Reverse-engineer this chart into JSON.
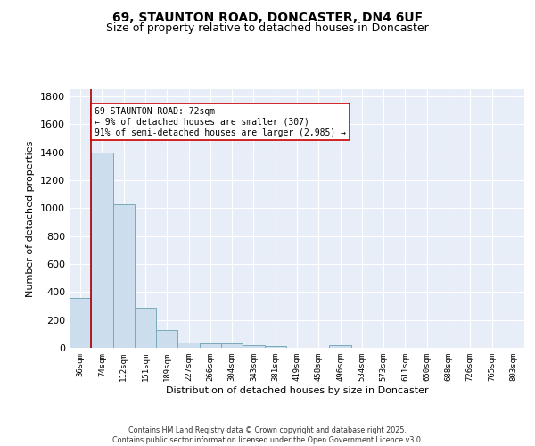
{
  "title_line1": "69, STAUNTON ROAD, DONCASTER, DN4 6UF",
  "title_line2": "Size of property relative to detached houses in Doncaster",
  "xlabel": "Distribution of detached houses by size in Doncaster",
  "ylabel": "Number of detached properties",
  "bin_labels": [
    "36sqm",
    "74sqm",
    "112sqm",
    "151sqm",
    "189sqm",
    "227sqm",
    "266sqm",
    "304sqm",
    "343sqm",
    "381sqm",
    "419sqm",
    "458sqm",
    "496sqm",
    "534sqm",
    "573sqm",
    "611sqm",
    "650sqm",
    "688sqm",
    "726sqm",
    "765sqm",
    "803sqm"
  ],
  "bar_values": [
    360,
    1400,
    1025,
    290,
    130,
    40,
    32,
    35,
    20,
    15,
    0,
    0,
    20,
    0,
    0,
    0,
    0,
    0,
    0,
    0,
    0
  ],
  "bar_color": "#ccdded",
  "bar_edge_color": "#7aaabb",
  "vline_x": 0.5,
  "vline_color": "#aa0000",
  "annotation_text": "69 STAUNTON ROAD: 72sqm\n← 9% of detached houses are smaller (307)\n91% of semi-detached houses are larger (2,985) →",
  "annotation_box_color": "#ffffff",
  "annotation_box_edge": "#cc0000",
  "ylim": [
    0,
    1850
  ],
  "yticks": [
    0,
    200,
    400,
    600,
    800,
    1000,
    1200,
    1400,
    1600,
    1800
  ],
  "bg_color": "#e8eef8",
  "footer_line1": "Contains HM Land Registry data © Crown copyright and database right 2025.",
  "footer_line2": "Contains public sector information licensed under the Open Government Licence v3.0.",
  "title_fontsize": 10,
  "subtitle_fontsize": 9
}
